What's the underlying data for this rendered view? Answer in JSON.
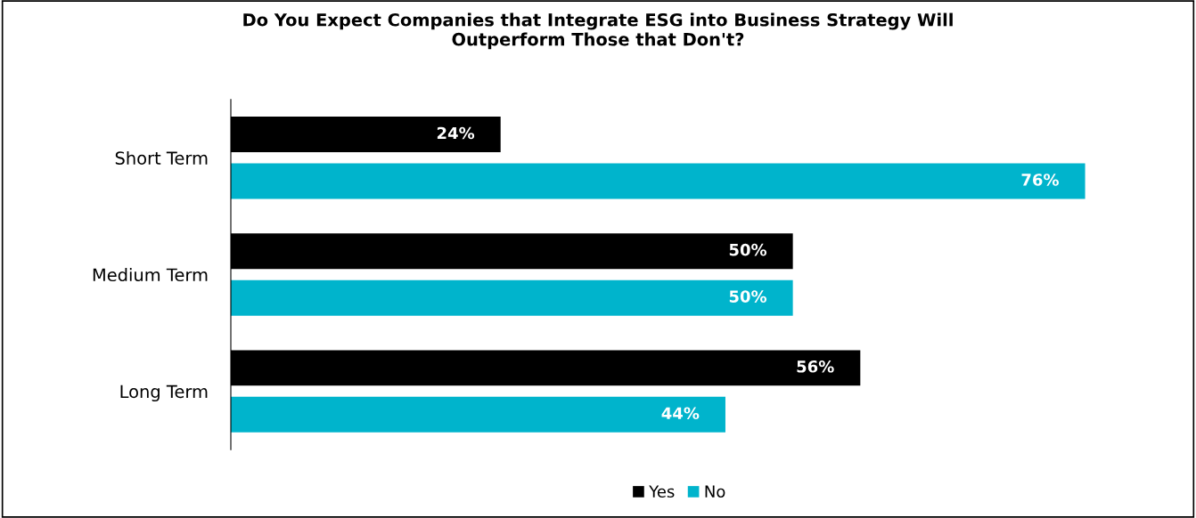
{
  "chart_data": {
    "type": "bar",
    "orientation": "horizontal",
    "title": "Do You Expect Companies that Integrate ESG into Business Strategy Will\nOutperform Those that Don't?",
    "categories": [
      "Short Term",
      "Medium Term",
      "Long Term"
    ],
    "series": [
      {
        "name": "Yes",
        "color": "#000000",
        "values": [
          24,
          50,
          56
        ],
        "value_labels": [
          "24%",
          "50%",
          "56%"
        ]
      },
      {
        "name": "No",
        "color": "#00b4cc",
        "values": [
          76,
          50,
          44
        ],
        "value_labels": [
          "76%",
          "50%",
          "44%"
        ]
      }
    ],
    "legend": "bottom",
    "grid": false,
    "tick_labels": "y"
  }
}
